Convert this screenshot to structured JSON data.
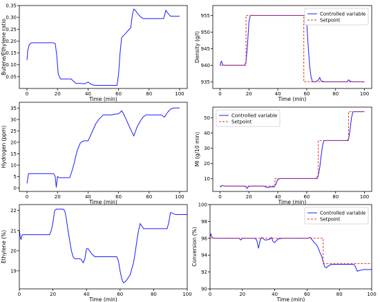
{
  "chart_data": [
    {
      "type": "line",
      "xlabel": "Time (min)",
      "ylabel": "Butene/Ethylene ratio",
      "xlim": [
        -5,
        105
      ],
      "ylim": [
        0.0,
        0.35
      ],
      "xticks": [
        "0",
        "20",
        "40",
        "60",
        "80",
        "100"
      ],
      "yticks": [
        "0.05",
        "0.10",
        "0.15",
        "0.20",
        "0.25",
        "0.30",
        "0.35"
      ],
      "series": [
        {
          "color": "#1a1aff",
          "style": "solid",
          "x": [
            0,
            0.5,
            1.5,
            3,
            10,
            17,
            18.5,
            19.5,
            20.5,
            22,
            28,
            29,
            30,
            32,
            38,
            40,
            41.5,
            43,
            45,
            48,
            55,
            59,
            60,
            61,
            62,
            65,
            67,
            68,
            69,
            70,
            71,
            72,
            74,
            76,
            80,
            85,
            89.5,
            90,
            91,
            92,
            94,
            100
          ],
          "y": [
            0.12,
            0.16,
            0.185,
            0.193,
            0.193,
            0.193,
            0.19,
            0.14,
            0.06,
            0.04,
            0.04,
            0.04,
            0.033,
            0.022,
            0.02,
            0.027,
            0.02,
            0.015,
            0.013,
            0.013,
            0.013,
            0.013,
            0.06,
            0.15,
            0.215,
            0.235,
            0.25,
            0.255,
            0.31,
            0.335,
            0.33,
            0.32,
            0.305,
            0.295,
            0.295,
            0.295,
            0.295,
            0.305,
            0.33,
            0.32,
            0.305,
            0.305
          ]
        }
      ]
    },
    {
      "type": "line",
      "xlabel": "Time (min)",
      "ylabel": "Density (g/l)",
      "xlim": [
        -5,
        105
      ],
      "ylim": [
        933,
        958
      ],
      "xticks": [
        "0",
        "20",
        "40",
        "60",
        "80",
        "100"
      ],
      "yticks": [
        "935",
        "940",
        "945",
        "950",
        "955"
      ],
      "legend_position": "top-right",
      "series": [
        {
          "name": "Controlled variable",
          "color": "#1a1aff",
          "style": "solid",
          "x": [
            0,
            0.5,
            1,
            1.5,
            2,
            5,
            10,
            17,
            18,
            19,
            20,
            21,
            22,
            25,
            40,
            55,
            58,
            59,
            60,
            61,
            62,
            63,
            64,
            66,
            68,
            69,
            70,
            72,
            80,
            88,
            89,
            90,
            92,
            100
          ],
          "y": [
            940,
            940.8,
            941.2,
            940.6,
            940,
            940,
            940,
            940,
            941,
            946,
            953,
            955,
            955,
            955,
            955,
            955,
            955,
            955,
            953,
            946,
            940,
            936.5,
            935,
            935,
            935.5,
            936.3,
            935.3,
            935,
            935,
            935,
            935.6,
            935.2,
            935,
            935
          ]
        },
        {
          "name": "Setpoint",
          "color": "#e8301c",
          "style": "dashed",
          "x": [
            0,
            18,
            18,
            58,
            58,
            100
          ],
          "y": [
            940,
            940,
            955,
            955,
            935,
            935
          ]
        }
      ]
    },
    {
      "type": "line",
      "xlabel": "Time (min)",
      "ylabel": "Hydrogen (ppm)",
      "xlim": [
        -5,
        105
      ],
      "ylim": [
        -1.5,
        37.5
      ],
      "xticks": [
        "0",
        "20",
        "40",
        "60",
        "80",
        "100"
      ],
      "yticks": [
        "0",
        "5",
        "10",
        "15",
        "20",
        "25",
        "30",
        "35"
      ],
      "series": [
        {
          "color": "#1a1aff",
          "style": "solid",
          "x": [
            0,
            0.5,
            1,
            2,
            5,
            10,
            15,
            17.5,
            18.5,
            19.2,
            20,
            21,
            27,
            28,
            29.5,
            31,
            32,
            33,
            35,
            37,
            38,
            40,
            42,
            44,
            45,
            46,
            47,
            50,
            55,
            60,
            61,
            62,
            63,
            65,
            68,
            70,
            71,
            72,
            74,
            76,
            78,
            80,
            85,
            88,
            89,
            90,
            92,
            94,
            96,
            100
          ],
          "y": [
            2,
            4,
            6.3,
            6.3,
            6.3,
            6.3,
            6.3,
            6.3,
            5,
            0.3,
            5,
            4.5,
            4.5,
            4.5,
            7.5,
            11,
            14,
            16.5,
            19.8,
            20.6,
            20.6,
            20.6,
            23.5,
            26.5,
            28,
            29,
            30,
            32,
            32,
            32.5,
            33,
            33.8,
            32.8,
            30,
            25.5,
            22.8,
            24.5,
            26.5,
            29,
            31,
            32,
            32,
            32,
            32,
            31.5,
            31,
            33,
            34.5,
            35,
            35
          ]
        }
      ]
    },
    {
      "type": "line",
      "xlabel": "Time (min)",
      "ylabel": "MI (g/10 min)",
      "xlim": [
        -5,
        105
      ],
      "ylim": [
        1.5,
        57
      ],
      "xticks": [
        "0",
        "20",
        "40",
        "60",
        "80",
        "100"
      ],
      "yticks": [
        "10",
        "20",
        "30",
        "40",
        "50"
      ],
      "legend_position": "top-left",
      "series": [
        {
          "name": "Controlled variable",
          "color": "#1a1aff",
          "style": "solid",
          "x": [
            0,
            0.5,
            1.5,
            3,
            10,
            17,
            18,
            18.7,
            19.5,
            20.5,
            25,
            30,
            33,
            35,
            37.5,
            38.5,
            40,
            42,
            50,
            60,
            65,
            66.5,
            67,
            68,
            69,
            70,
            71,
            72,
            75,
            80,
            85,
            88,
            89,
            90,
            91,
            92,
            100
          ],
          "y": [
            5,
            4.5,
            5.5,
            5,
            5,
            5,
            4.5,
            3.5,
            4.5,
            5,
            5,
            5,
            4,
            4.5,
            4.5,
            6,
            9.5,
            10,
            10,
            10,
            10,
            10,
            10.5,
            12,
            17,
            25,
            32,
            35,
            35,
            35,
            35,
            35,
            36,
            42,
            50,
            54,
            54
          ]
        },
        {
          "name": "Setpoint",
          "color": "#e8301c",
          "style": "dashed",
          "x": [
            0,
            38,
            38,
            68,
            68,
            89,
            89,
            100
          ],
          "y": [
            5,
            5,
            10,
            10,
            35,
            35,
            54,
            54
          ]
        }
      ]
    },
    {
      "type": "line",
      "xlabel": "Time (min)",
      "ylabel": "Ethylene (%)",
      "xlim": [
        0,
        100
      ],
      "ylim": [
        18.1,
        22.3
      ],
      "xticks": [
        "0",
        "20",
        "40",
        "60",
        "80",
        "100"
      ],
      "yticks": [
        "19",
        "20",
        "21",
        "22"
      ],
      "series": [
        {
          "color": "#1a1aff",
          "style": "solid",
          "x": [
            0,
            0.5,
            1,
            1.5,
            2,
            5,
            10,
            15,
            18,
            19,
            20,
            21,
            22,
            25,
            26,
            27,
            28,
            29,
            30,
            31,
            32,
            33,
            35,
            36,
            37,
            38,
            39,
            40,
            41,
            43,
            45,
            50,
            55,
            58,
            59,
            60,
            61,
            62,
            63,
            64,
            66,
            68,
            69,
            70,
            71,
            72,
            74,
            80,
            85,
            87,
            88,
            89,
            90,
            91,
            93,
            95,
            100
          ],
          "y": [
            21.05,
            20.7,
            20.55,
            20.75,
            20.8,
            20.8,
            20.8,
            20.8,
            20.8,
            21.0,
            21.4,
            22.0,
            22.07,
            22.07,
            22.07,
            22.0,
            21.6,
            21.0,
            20.5,
            20.0,
            19.7,
            19.6,
            19.6,
            19.6,
            19.55,
            19.4,
            19.6,
            20.1,
            20.1,
            19.85,
            19.7,
            19.7,
            19.7,
            19.7,
            19.5,
            19.0,
            18.6,
            18.4,
            18.45,
            18.55,
            18.8,
            19.4,
            19.9,
            20.5,
            21.0,
            21.35,
            21.1,
            21.1,
            21.1,
            21.1,
            21.1,
            21.4,
            21.9,
            21.88,
            21.8,
            21.8,
            21.8
          ]
        }
      ]
    },
    {
      "type": "line",
      "xlabel": "Time (min)",
      "ylabel": "Conversion (%)",
      "xlim": [
        0,
        100
      ],
      "ylim": [
        90,
        100
      ],
      "xticks": [
        "0",
        "20",
        "40",
        "60",
        "80",
        "100"
      ],
      "yticks": [
        "90",
        "92",
        "94",
        "96",
        "98",
        "100"
      ],
      "legend_position": "top-right",
      "series": [
        {
          "name": "Controlled variable",
          "color": "#1a1aff",
          "style": "solid",
          "x": [
            0,
            0.5,
            1,
            2,
            5,
            10,
            15,
            18,
            19,
            20,
            25,
            28,
            29,
            30,
            31,
            32,
            34,
            35,
            37,
            38,
            39,
            40,
            42,
            45,
            50,
            55,
            58,
            60,
            62,
            64,
            66,
            67,
            68,
            69,
            70,
            71,
            72,
            73,
            75,
            80,
            85,
            88,
            89,
            90,
            91,
            93,
            95,
            100
          ],
          "y": [
            96.2,
            96.5,
            96.2,
            96.0,
            96.0,
            96.0,
            96.0,
            96.0,
            95.8,
            96.0,
            96.0,
            96.0,
            95.7,
            94.8,
            95.8,
            96.1,
            95.8,
            95.8,
            95.9,
            96.1,
            95.6,
            95.5,
            95.9,
            96.0,
            96.0,
            96.0,
            96.0,
            96.0,
            96.1,
            95.6,
            95.2,
            94.8,
            94.3,
            93.9,
            93.2,
            92.6,
            92.5,
            92.7,
            92.9,
            92.9,
            92.9,
            92.9,
            92.9,
            92.6,
            92.1,
            92.2,
            92.3,
            92.3
          ]
        },
        {
          "name": "Setpoint",
          "color": "#e8301c",
          "style": "dashed",
          "x": [
            0,
            70,
            70,
            100
          ],
          "y": [
            96,
            96,
            93,
            93
          ]
        }
      ]
    }
  ]
}
